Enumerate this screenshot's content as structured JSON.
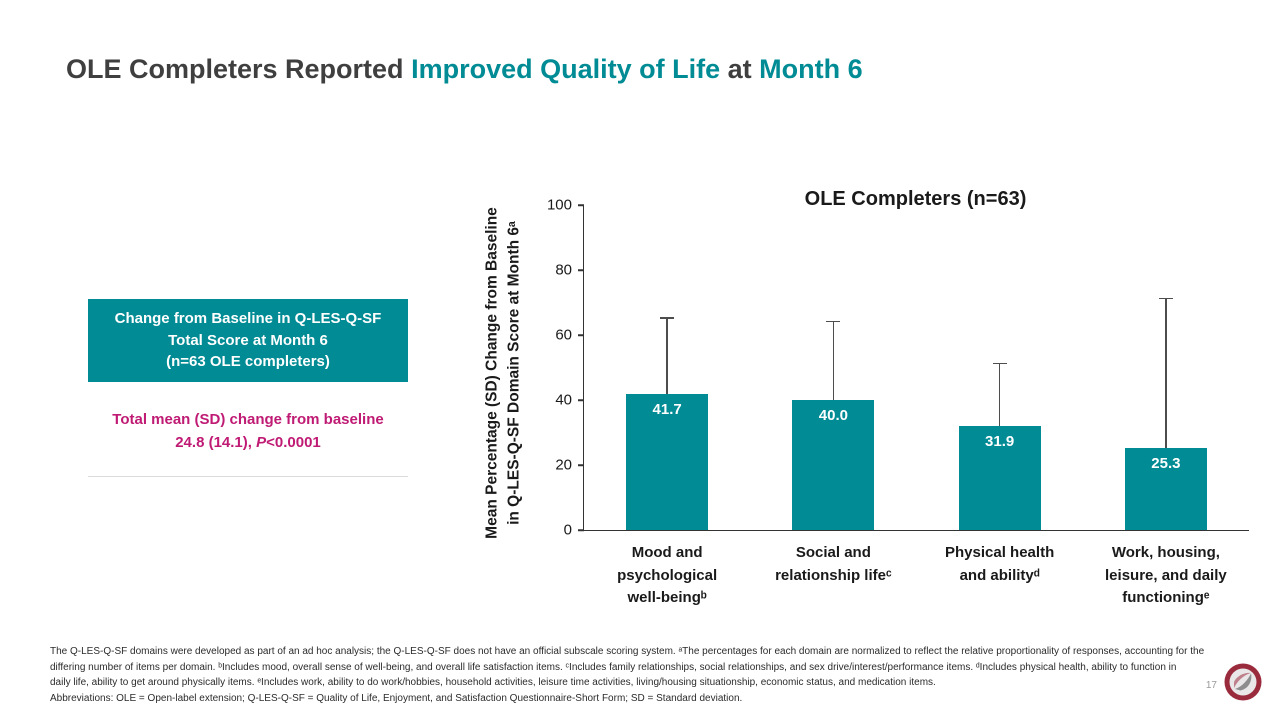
{
  "colors": {
    "teal": "#008B95",
    "magenta": "#C01B74",
    "title_gray": "#3F3F3F"
  },
  "title": {
    "part1": "OLE Completers Reported ",
    "part2": "Improved Quality of Life",
    "part3": " at ",
    "part4": "Month 6"
  },
  "callout": {
    "line1": "Change from Baseline in Q-LES-Q-SF",
    "line2": "Total Score at Month 6",
    "line3": "(n=63 OLE completers)"
  },
  "stat": {
    "line1": "Total mean (SD) change from baseline",
    "line2_prefix": "24.8 (14.1), ",
    "p_label": "P",
    "p_value": "<0.0001"
  },
  "chart_data": {
    "type": "bar",
    "title": "OLE Completers (n=63)",
    "ylabel": "Mean Percentage (SD) Change from Baseline\nin Q-LES-Q-SF Domain Score at Month 6ᵃ",
    "xlabel": "",
    "ylim": [
      0,
      100
    ],
    "yticks": [
      0,
      20,
      40,
      60,
      80,
      100
    ],
    "grid": false,
    "legend_position": "none",
    "bar_color": "#008B95",
    "categories": [
      "Mood and\npsychological\nwell-beingᵇ",
      "Social and\nrelationship lifeᶜ",
      "Physical health\nand abilityᵈ",
      "Work, housing,\nleisure, and daily\nfunctioningᵉ"
    ],
    "values": [
      41.7,
      40.0,
      31.9,
      25.3
    ],
    "value_labels": [
      "41.7",
      "40.0",
      "31.9",
      "25.3"
    ],
    "error_upper": [
      65,
      64,
      51,
      71
    ]
  },
  "footer": {
    "lines": [
      "The Q-LES-Q-SF domains were developed as part of an ad hoc analysis; the Q-LES-Q-SF does not have an official subscale scoring system. ᵃThe percentages for each domain are normalized to reflect the relative proportionality of responses, accounting for the",
      "differing number of items per domain. ᵇIncludes mood, overall sense of well-being, and overall life satisfaction items. ᶜIncludes family relationships, social relationships, and sex drive/interest/performance items. ᵈIncludes physical health, ability to function in",
      "daily life, ability to get around physically items. ᵉIncludes work, ability to do work/hobbies, household activities, leisure time activities, living/housing situationship, economic status, and medication items.",
      "Abbreviations: OLE = Open-label extension; Q-LES-Q-SF = Quality of Life, Enjoyment, and Satisfaction Questionnaire-Short Form; SD = Standard deviation."
    ]
  },
  "page_number": "17"
}
